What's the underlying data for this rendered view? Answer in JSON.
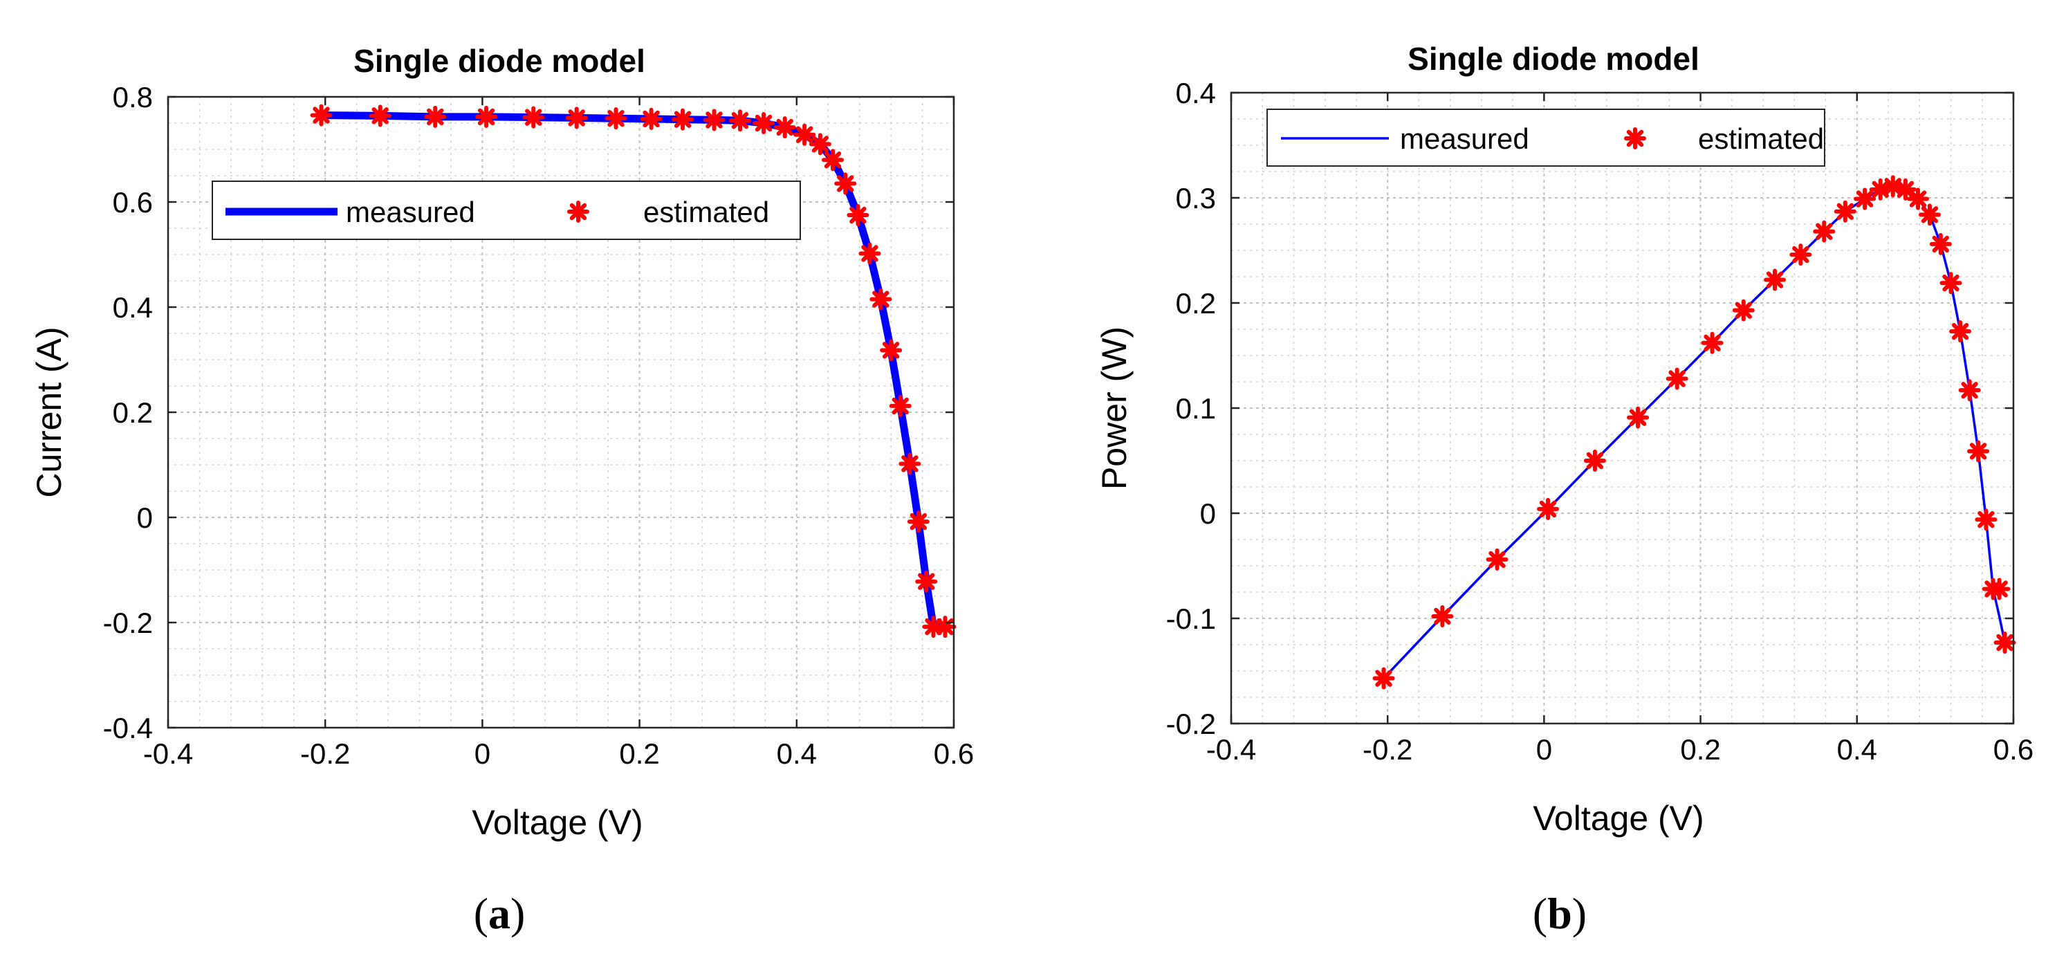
{
  "chart_data": [
    {
      "type": "line",
      "title": "Single diode model",
      "xlabel": "Voltage (V)",
      "ylabel": "Current (A)",
      "xlim": [
        -0.4,
        0.6
      ],
      "ylim": [
        -0.4,
        0.8
      ],
      "xticks": [
        "-0.4",
        "-0.2",
        "0",
        "0.2",
        "0.4",
        "0.6"
      ],
      "yticks": [
        "-0.4",
        "-0.2",
        "0",
        "0.2",
        "0.4",
        "0.6",
        "0.8"
      ],
      "grid": true,
      "legend_position": "upper-left",
      "caption_letter": "a",
      "series": [
        {
          "name": "measured",
          "style": "line",
          "color": "#0000ff",
          "x": [
            -0.205,
            -0.13,
            -0.06,
            0.005,
            0.065,
            0.12,
            0.17,
            0.215,
            0.255,
            0.295,
            0.328,
            0.358,
            0.385,
            0.41,
            0.43,
            0.446,
            0.462,
            0.478,
            0.493,
            0.507,
            0.52,
            0.532,
            0.544,
            0.555,
            0.565,
            0.574,
            0.582,
            0.589
          ],
          "y": [
            0.765,
            0.764,
            0.762,
            0.762,
            0.761,
            0.76,
            0.759,
            0.758,
            0.757,
            0.756,
            0.755,
            0.75,
            0.742,
            0.728,
            0.71,
            0.68,
            0.635,
            0.575,
            0.502,
            0.415,
            0.318,
            0.212,
            0.102,
            -0.008,
            -0.122,
            -0.208,
            -0.208,
            -0.208
          ]
        },
        {
          "name": "estimated",
          "style": "marker",
          "color": "#ff0000",
          "x": [
            -0.205,
            -0.13,
            -0.06,
            0.005,
            0.065,
            0.12,
            0.17,
            0.215,
            0.255,
            0.295,
            0.328,
            0.358,
            0.385,
            0.41,
            0.43,
            0.446,
            0.462,
            0.478,
            0.493,
            0.507,
            0.52,
            0.532,
            0.544,
            0.555,
            0.565,
            0.574,
            0.589
          ],
          "y": [
            0.765,
            0.764,
            0.762,
            0.762,
            0.761,
            0.76,
            0.759,
            0.758,
            0.757,
            0.756,
            0.755,
            0.75,
            0.742,
            0.728,
            0.71,
            0.68,
            0.635,
            0.575,
            0.502,
            0.415,
            0.318,
            0.212,
            0.102,
            -0.008,
            -0.122,
            -0.208,
            -0.208
          ]
        }
      ]
    },
    {
      "type": "line",
      "title": "Single diode model",
      "xlabel": "Voltage (V)",
      "ylabel": "Power (W)",
      "xlim": [
        -0.4,
        0.6
      ],
      "ylim": [
        -0.2,
        0.4
      ],
      "xticks": [
        "-0.4",
        "-0.2",
        "0",
        "0.2",
        "0.4",
        "0.6"
      ],
      "yticks": [
        "-0.2",
        "-0.1",
        "0",
        "0.1",
        "0.2",
        "0.3",
        "0.4"
      ],
      "grid": true,
      "legend_position": "top-left",
      "caption_letter": "b",
      "series": [
        {
          "name": "measured",
          "style": "line",
          "color": "#0000ff",
          "x": [
            -0.205,
            -0.13,
            -0.06,
            0.005,
            0.065,
            0.12,
            0.17,
            0.215,
            0.255,
            0.295,
            0.328,
            0.358,
            0.385,
            0.41,
            0.43,
            0.446,
            0.462,
            0.478,
            0.493,
            0.507,
            0.52,
            0.532,
            0.544,
            0.555,
            0.565,
            0.574,
            0.582,
            0.589
          ],
          "y": [
            -0.157,
            -0.098,
            -0.044,
            0.004,
            0.05,
            0.091,
            0.128,
            0.162,
            0.193,
            0.222,
            0.246,
            0.268,
            0.287,
            0.299,
            0.308,
            0.311,
            0.308,
            0.299,
            0.284,
            0.256,
            0.219,
            0.173,
            0.117,
            0.059,
            -0.006,
            -0.072,
            -0.098,
            -0.123
          ]
        },
        {
          "name": "estimated",
          "style": "marker",
          "color": "#ff0000",
          "x": [
            -0.205,
            -0.13,
            -0.06,
            0.005,
            0.065,
            0.12,
            0.17,
            0.215,
            0.255,
            0.295,
            0.328,
            0.358,
            0.385,
            0.41,
            0.43,
            0.446,
            0.462,
            0.478,
            0.493,
            0.507,
            0.52,
            0.532,
            0.544,
            0.555,
            0.565,
            0.574,
            0.582,
            0.589
          ],
          "y": [
            -0.157,
            -0.098,
            -0.044,
            0.004,
            0.05,
            0.091,
            0.128,
            0.162,
            0.193,
            0.222,
            0.246,
            0.268,
            0.287,
            0.299,
            0.308,
            0.311,
            0.308,
            0.299,
            0.284,
            0.256,
            0.219,
            0.173,
            0.117,
            0.059,
            -0.006,
            -0.072,
            -0.072,
            -0.123
          ]
        }
      ]
    }
  ]
}
